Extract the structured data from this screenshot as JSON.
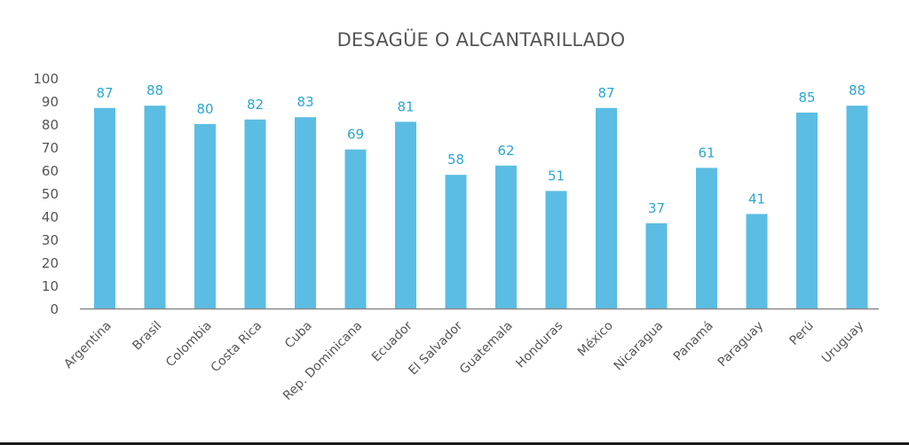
{
  "chart_data": {
    "type": "bar",
    "title": "DESAGÜE O ALCANTARILLADO",
    "xlabel": "",
    "ylabel": "",
    "ylim": [
      0,
      100
    ],
    "yticks": [
      "0",
      "10",
      "20",
      "30",
      "40",
      "50",
      "60",
      "70",
      "80",
      "90",
      "100"
    ],
    "categories": [
      "Argentina",
      "Brasil",
      "Colombia",
      "Costa Rica",
      "Cuba",
      "Rep. Dominicana",
      "Ecuador",
      "El Salvador",
      "Guatemala",
      "Honduras",
      "México",
      "Nicaragua",
      "Panamá",
      "Paraguay",
      "Perú",
      "Uruguay"
    ],
    "values": [
      87,
      88,
      80,
      82,
      83,
      69,
      81,
      58,
      62,
      51,
      87,
      37,
      61,
      41,
      85,
      88
    ],
    "data_labels": [
      "87",
      "88",
      "80",
      "82",
      "83",
      "69",
      "81",
      "58",
      "62",
      "51",
      "87",
      "37",
      "61",
      "41",
      "85",
      "88"
    ],
    "grid": false,
    "colors": {
      "bar": "#5bbde3",
      "label": "#2aa7cf",
      "axis": "#888888",
      "text": "#555555"
    }
  }
}
